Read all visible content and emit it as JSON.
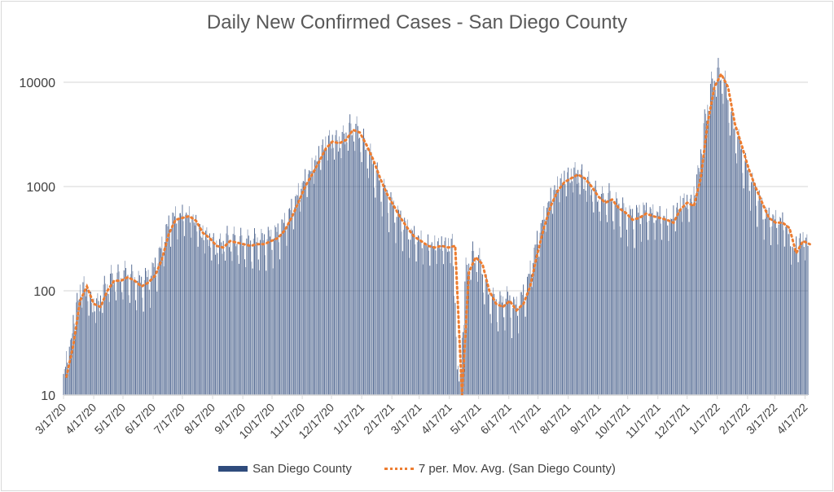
{
  "chart_data": {
    "type": "bar",
    "title": "Daily New Confirmed Cases - San Diego County",
    "xlabel": "",
    "ylabel": "",
    "yscale": "log",
    "ylim": [
      10,
      20000
    ],
    "yticks": [
      "10",
      "100",
      "1000",
      "10000"
    ],
    "xticks": [
      "3/17/20",
      "4/17/20",
      "5/17/20",
      "6/17/20",
      "7/17/20",
      "8/17/20",
      "9/17/20",
      "10/17/20",
      "11/17/20",
      "12/17/20",
      "1/17/21",
      "2/17/21",
      "3/17/21",
      "4/17/21",
      "5/17/21",
      "6/17/21",
      "7/17/21",
      "8/17/21",
      "9/17/21",
      "10/17/21",
      "11/17/21",
      "12/17/21",
      "1/17/22",
      "2/17/22",
      "3/17/22",
      "4/17/22"
    ],
    "x_start": "3/17/20",
    "x_end": "4/20/22",
    "grid": true,
    "legend_position": "bottom",
    "series": [
      {
        "name": "San Diego County",
        "kind": "bar",
        "color": "#2f4b7c",
        "note": "daily values; weekly approximations below"
      },
      {
        "name": "7 per. Mov. Avg. (San Diego County)",
        "kind": "line",
        "color": "#ed7d31",
        "weekly_values": [
          15,
          30,
          80,
          110,
          75,
          70,
          100,
          125,
          125,
          135,
          125,
          110,
          120,
          140,
          200,
          350,
          480,
          500,
          520,
          470,
          360,
          320,
          270,
          260,
          300,
          290,
          280,
          270,
          280,
          280,
          300,
          320,
          380,
          500,
          700,
          1000,
          1300,
          1700,
          2300,
          2700,
          2600,
          2800,
          3500,
          3300,
          2500,
          1800,
          1200,
          850,
          650,
          500,
          400,
          330,
          300,
          270,
          260,
          270,
          260,
          270,
          10,
          150,
          210,
          180,
          100,
          75,
          70,
          80,
          65,
          75,
          110,
          220,
          400,
          650,
          900,
          1100,
          1200,
          1300,
          1200,
          1000,
          800,
          700,
          750,
          620,
          560,
          480,
          500,
          550,
          520,
          500,
          480,
          450,
          600,
          700,
          650,
          1200,
          4000,
          9000,
          12000,
          9000,
          4000,
          2500,
          1500,
          1000,
          700,
          500,
          450,
          450,
          400,
          230,
          300,
          280
        ]
      }
    ]
  },
  "legend": {
    "bar_label": "San Diego County",
    "line_label": "7 per. Mov. Avg. (San Diego County)"
  }
}
